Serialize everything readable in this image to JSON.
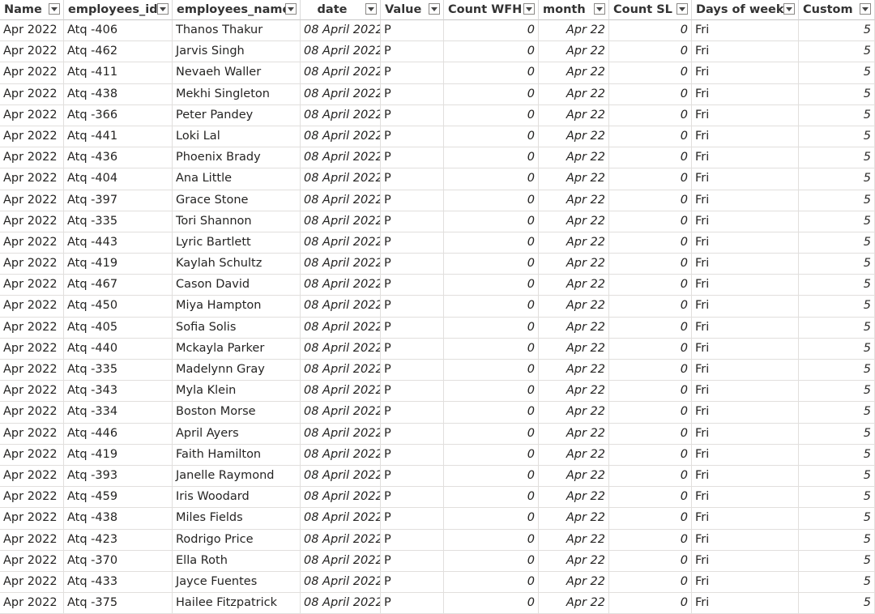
{
  "columns": [
    {
      "label": "Name",
      "align": "left"
    },
    {
      "label": "employees_id",
      "align": "left"
    },
    {
      "label": "employees_name",
      "align": "left"
    },
    {
      "label": "date",
      "align": "center"
    },
    {
      "label": "Value",
      "align": "left"
    },
    {
      "label": "Count WFH",
      "align": "left"
    },
    {
      "label": "month",
      "align": "left"
    },
    {
      "label": "Count SL",
      "align": "left"
    },
    {
      "label": "Days of week",
      "align": "left"
    },
    {
      "label": "Custom",
      "align": "left"
    }
  ],
  "rows": [
    [
      "Apr 2022",
      "Atq -406",
      "Thanos Thakur",
      "08 April 2022",
      "P",
      "0",
      "Apr 22",
      "0",
      "Fri",
      "5"
    ],
    [
      "Apr 2022",
      "Atq -462",
      "Jarvis Singh",
      "08 April 2022",
      "P",
      "0",
      "Apr 22",
      "0",
      "Fri",
      "5"
    ],
    [
      "Apr 2022",
      "Atq -411",
      "Nevaeh Waller",
      "08 April 2022",
      "P",
      "0",
      "Apr 22",
      "0",
      "Fri",
      "5"
    ],
    [
      "Apr 2022",
      "Atq -438",
      "Mekhi Singleton",
      "08 April 2022",
      "P",
      "0",
      "Apr 22",
      "0",
      "Fri",
      "5"
    ],
    [
      "Apr 2022",
      "Atq -366",
      "Peter Pandey",
      "08 April 2022",
      "P",
      "0",
      "Apr 22",
      "0",
      "Fri",
      "5"
    ],
    [
      "Apr 2022",
      "Atq -441",
      "Loki Lal",
      "08 April 2022",
      "P",
      "0",
      "Apr 22",
      "0",
      "Fri",
      "5"
    ],
    [
      "Apr 2022",
      "Atq -436",
      "Phoenix Brady",
      "08 April 2022",
      "P",
      "0",
      "Apr 22",
      "0",
      "Fri",
      "5"
    ],
    [
      "Apr 2022",
      "Atq -404",
      "Ana Little",
      "08 April 2022",
      "P",
      "0",
      "Apr 22",
      "0",
      "Fri",
      "5"
    ],
    [
      "Apr 2022",
      "Atq -397",
      "Grace Stone",
      "08 April 2022",
      "P",
      "0",
      "Apr 22",
      "0",
      "Fri",
      "5"
    ],
    [
      "Apr 2022",
      "Atq -335",
      "Tori Shannon",
      "08 April 2022",
      "P",
      "0",
      "Apr 22",
      "0",
      "Fri",
      "5"
    ],
    [
      "Apr 2022",
      "Atq -443",
      "Lyric Bartlett",
      "08 April 2022",
      "P",
      "0",
      "Apr 22",
      "0",
      "Fri",
      "5"
    ],
    [
      "Apr 2022",
      "Atq -419",
      "Kaylah Schultz",
      "08 April 2022",
      "P",
      "0",
      "Apr 22",
      "0",
      "Fri",
      "5"
    ],
    [
      "Apr 2022",
      "Atq -467",
      "Cason David",
      "08 April 2022",
      "P",
      "0",
      "Apr 22",
      "0",
      "Fri",
      "5"
    ],
    [
      "Apr 2022",
      "Atq -450",
      "Miya Hampton",
      "08 April 2022",
      "P",
      "0",
      "Apr 22",
      "0",
      "Fri",
      "5"
    ],
    [
      "Apr 2022",
      "Atq -405",
      "Sofia Solis",
      "08 April 2022",
      "P",
      "0",
      "Apr 22",
      "0",
      "Fri",
      "5"
    ],
    [
      "Apr 2022",
      "Atq -440",
      "Mckayla Parker",
      "08 April 2022",
      "P",
      "0",
      "Apr 22",
      "0",
      "Fri",
      "5"
    ],
    [
      "Apr 2022",
      "Atq -335",
      "Madelynn Gray",
      "08 April 2022",
      "P",
      "0",
      "Apr 22",
      "0",
      "Fri",
      "5"
    ],
    [
      "Apr 2022",
      "Atq -343",
      "Myla Klein",
      "08 April 2022",
      "P",
      "0",
      "Apr 22",
      "0",
      "Fri",
      "5"
    ],
    [
      "Apr 2022",
      "Atq -334",
      "Boston Morse",
      "08 April 2022",
      "P",
      "0",
      "Apr 22",
      "0",
      "Fri",
      "5"
    ],
    [
      "Apr 2022",
      "Atq -446",
      "April Ayers",
      "08 April 2022",
      "P",
      "0",
      "Apr 22",
      "0",
      "Fri",
      "5"
    ],
    [
      "Apr 2022",
      "Atq -419",
      "Faith Hamilton",
      "08 April 2022",
      "P",
      "0",
      "Apr 22",
      "0",
      "Fri",
      "5"
    ],
    [
      "Apr 2022",
      "Atq -393",
      "Janelle Raymond",
      "08 April 2022",
      "P",
      "0",
      "Apr 22",
      "0",
      "Fri",
      "5"
    ],
    [
      "Apr 2022",
      "Atq -459",
      "Iris Woodard",
      "08 April 2022",
      "P",
      "0",
      "Apr 22",
      "0",
      "Fri",
      "5"
    ],
    [
      "Apr 2022",
      "Atq -438",
      "Miles Fields",
      "08 April 2022",
      "P",
      "0",
      "Apr 22",
      "0",
      "Fri",
      "5"
    ],
    [
      "Apr 2022",
      "Atq -423",
      "Rodrigo Price",
      "08 April 2022",
      "P",
      "0",
      "Apr 22",
      "0",
      "Fri",
      "5"
    ],
    [
      "Apr 2022",
      "Atq -370",
      "Ella Roth",
      "08 April 2022",
      "P",
      "0",
      "Apr 22",
      "0",
      "Fri",
      "5"
    ],
    [
      "Apr 2022",
      "Atq -433",
      "Jayce Fuentes",
      "08 April 2022",
      "P",
      "0",
      "Apr 22",
      "0",
      "Fri",
      "5"
    ],
    [
      "Apr 2022",
      "Atq -375",
      "Hailee Fitzpatrick",
      "08 April 2022",
      "P",
      "0",
      "Apr 22",
      "0",
      "Fri",
      "5"
    ]
  ],
  "cell_styles": [
    "l",
    "l",
    "l",
    "r it",
    "l",
    "r it",
    "r it",
    "r it",
    "l",
    "r it"
  ],
  "colors": {
    "grid_line": "#e1dfdd",
    "header_border": "#c8c8c8",
    "text": "#252423"
  }
}
